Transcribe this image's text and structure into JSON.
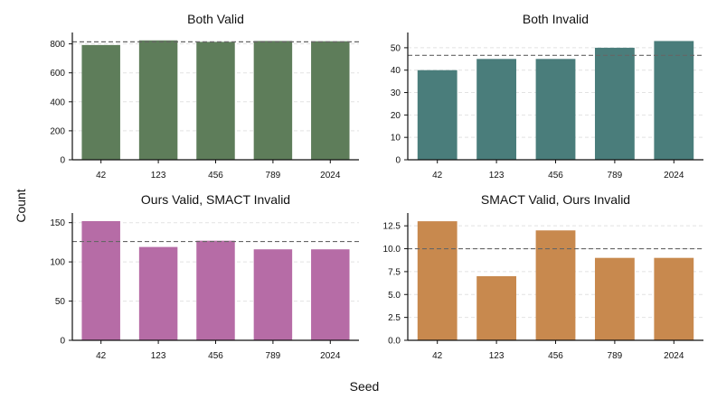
{
  "figure": {
    "xlabel": "Seed",
    "ylabel": "Count"
  },
  "chart_data": [
    {
      "type": "bar",
      "title": "Both Valid",
      "categories": [
        "42",
        "123",
        "456",
        "789",
        "2024"
      ],
      "values": [
        792,
        824,
        814,
        820,
        818
      ],
      "mean": 814,
      "ylim": [
        0,
        866
      ],
      "yticks": [
        0,
        200,
        400,
        600,
        800
      ],
      "ytick_labels": [
        "0",
        "200",
        "400",
        "600",
        "800"
      ],
      "color": "#5e7d5a",
      "grid": "y-dashed"
    },
    {
      "type": "bar",
      "title": "Both Invalid",
      "categories": [
        "42",
        "123",
        "456",
        "789",
        "2024"
      ],
      "values": [
        40,
        45,
        45,
        50,
        53
      ],
      "mean": 46.6,
      "ylim": [
        0,
        56
      ],
      "yticks": [
        0,
        10,
        20,
        30,
        40,
        50
      ],
      "ytick_labels": [
        "0",
        "10",
        "20",
        "30",
        "40",
        "50"
      ],
      "color": "#4a7d7b",
      "grid": "y-dashed"
    },
    {
      "type": "bar",
      "title": "Ours Valid, SMACT Invalid",
      "categories": [
        "42",
        "123",
        "456",
        "789",
        "2024"
      ],
      "values": [
        152,
        119,
        127,
        116,
        116
      ],
      "mean": 126,
      "ylim": [
        0,
        160
      ],
      "yticks": [
        0,
        50,
        100,
        150
      ],
      "ytick_labels": [
        "0",
        "50",
        "100",
        "150"
      ],
      "color": "#b66ca6",
      "grid": "y-dashed"
    },
    {
      "type": "bar",
      "title": "SMACT Valid, Ours Invalid",
      "categories": [
        "42",
        "123",
        "456",
        "789",
        "2024"
      ],
      "values": [
        13,
        7,
        12,
        9,
        9
      ],
      "mean": 10,
      "ylim": [
        0,
        13.7
      ],
      "yticks": [
        0,
        2.5,
        5,
        7.5,
        10,
        12.5
      ],
      "ytick_labels": [
        "0.0",
        "2.5",
        "5.0",
        "7.5",
        "10.0",
        "12.5"
      ],
      "color": "#c8894e",
      "grid": "y-dashed"
    }
  ]
}
